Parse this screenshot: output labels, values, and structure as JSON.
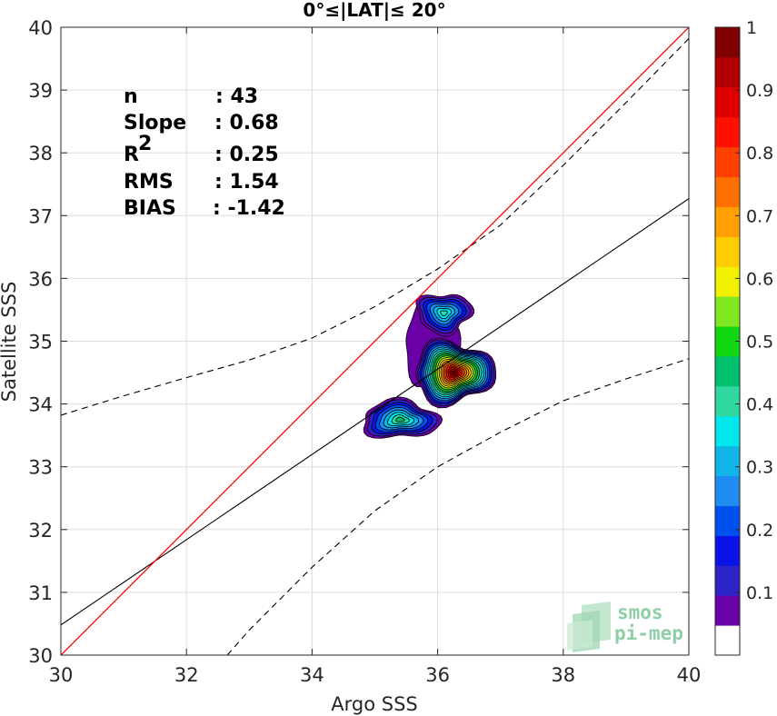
{
  "chart_data": {
    "type": "scatter",
    "title": "0°≤|LAT|≤ 20°",
    "xlabel": "Argo SSS",
    "ylabel": "Satellite SSS",
    "xlim": [
      30,
      40
    ],
    "ylim": [
      30,
      40
    ],
    "xticks": [
      "30",
      "32",
      "34",
      "36",
      "38",
      "40"
    ],
    "yticks": [
      "30",
      "31",
      "32",
      "33",
      "34",
      "35",
      "36",
      "37",
      "38",
      "39",
      "40"
    ],
    "grid": true,
    "stats": [
      {
        "name": "n",
        "value": ": 43"
      },
      {
        "name": "Slope",
        "value": ": 0.68"
      },
      {
        "name": "R",
        "sup": "2",
        "value": ": 0.25"
      },
      {
        "name": "RMS",
        "value": ": 1.54"
      },
      {
        "name": "BIAS",
        "value": ": -1.42"
      }
    ],
    "identity_line": {
      "color": "#ff0000",
      "x": [
        30,
        40
      ],
      "y": [
        30,
        40
      ]
    },
    "regression_line": {
      "color": "#000000",
      "x": [
        30,
        40
      ],
      "y": [
        30.48,
        37.27
      ]
    },
    "upper_dashed": {
      "x": [
        30,
        31,
        32,
        33,
        34,
        35,
        36,
        37,
        38,
        39,
        40
      ],
      "y": [
        33.82,
        34.13,
        34.42,
        34.7,
        35.05,
        35.55,
        36.15,
        36.85,
        37.8,
        38.8,
        39.82
      ]
    },
    "lower_dashed": {
      "x": [
        32.65,
        33,
        34,
        35,
        36,
        37,
        38,
        39,
        40
      ],
      "y": [
        30.0,
        30.4,
        31.4,
        32.3,
        33.0,
        33.55,
        34.05,
        34.4,
        34.72
      ]
    },
    "density_clusters": [
      {
        "center": [
          35.4,
          33.75
        ],
        "peak": 0.45
      },
      {
        "center": [
          36.25,
          34.5
        ],
        "peak": 1.0
      },
      {
        "center": [
          36.1,
          35.45
        ],
        "peak": 0.4
      }
    ],
    "colorbar": {
      "labels": [
        "0.1",
        "0.2",
        "0.3",
        "0.4",
        "0.5",
        "0.6",
        "0.7",
        "0.8",
        "0.9",
        "1"
      ],
      "colors": [
        "#ffffff",
        "#6a00a8",
        "#2e23c8",
        "#0a14e8",
        "#0050f0",
        "#1e8cf0",
        "#10b4e6",
        "#00e8ee",
        "#30d8a0",
        "#00c070",
        "#10d810",
        "#80e820",
        "#f0f000",
        "#ffcc00",
        "#ffa000",
        "#ff7000",
        "#ff4000",
        "#ff1000",
        "#e00000",
        "#b00000",
        "#800000"
      ]
    }
  },
  "watermark": {
    "line1": "smos",
    "line2": "pi-mep"
  }
}
